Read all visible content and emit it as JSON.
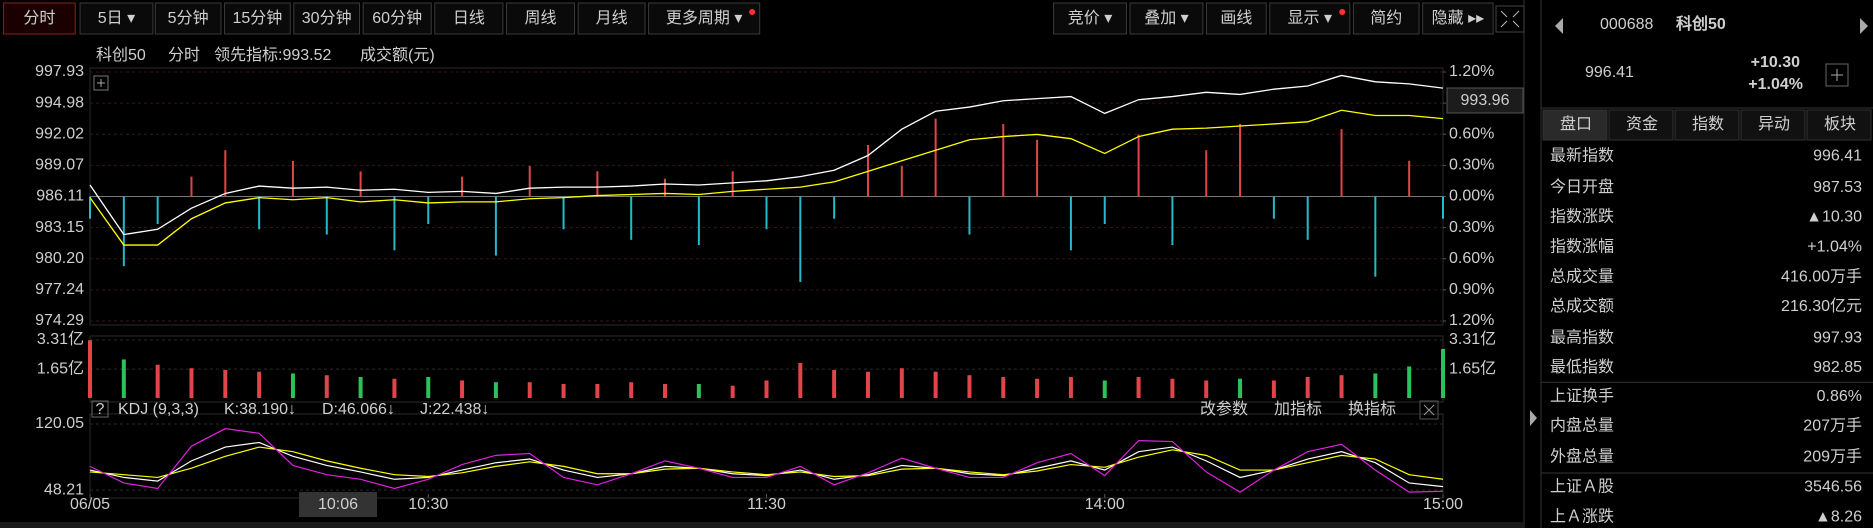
{
  "toolbar": {
    "left": [
      "分时",
      "5日 ▾",
      "5分钟",
      "15分钟",
      "30分钟",
      "60分钟",
      "日线",
      "周线",
      "月线",
      "更多周期 ▾"
    ],
    "right": [
      "竞价 ▾",
      "叠加 ▾",
      "画线",
      "显示 ▾",
      "简约",
      "隐藏 ▸▸"
    ]
  },
  "cursor": {
    "time": "10:06",
    "price": "993.96"
  },
  "chart_data": [
    {
      "type": "line",
      "period": "分时",
      "amount_label": "成交额(元)",
      "x": [
        0,
        6,
        12,
        18,
        24,
        30,
        36,
        42,
        48,
        54,
        60,
        66,
        72,
        78,
        84,
        90,
        96,
        102,
        108,
        114,
        120,
        126,
        132,
        138,
        144,
        150,
        156,
        162,
        168,
        174,
        180,
        186,
        192,
        198,
        204,
        210,
        216,
        222,
        228,
        234,
        240
      ],
      "xlim": [
        0,
        240
      ],
      "xticks": [
        {
          "value": 0,
          "label": "06/05"
        },
        {
          "value": 60,
          "label": "10:30"
        },
        {
          "value": 120,
          "label": "11:30"
        },
        {
          "value": 180,
          "label": "14:00"
        },
        {
          "value": 240,
          "label": "15:00"
        }
      ],
      "ylim": [
        974.29,
        997.93
      ],
      "yticks": [
        997.93,
        994.98,
        992.02,
        989.07,
        986.11,
        983.15,
        {
          "value": 980.2,
          "label": "980.20"
        },
        977.24,
        974.29
      ],
      "y2lim": [
        -1.2,
        1.2
      ],
      "y2ticks": [
        {
          "value": 1.2,
          "label": "1.20%"
        },
        {
          "value": 0.9,
          "label": "0.90%"
        },
        {
          "value": 0.6,
          "label": "0.60%"
        },
        {
          "value": 0.3,
          "label": "0.30%"
        },
        {
          "value": 0,
          "label": "0.00%"
        },
        {
          "value": -0.3,
          "label": "0.30%"
        },
        {
          "value": -0.6,
          "label": "0.60%"
        },
        {
          "value": -0.9,
          "label": "0.90%"
        },
        {
          "value": -1.2,
          "label": "1.20%"
        }
      ],
      "up_color": "#ff4d4d",
      "down_color": "#2bd15a",
      "grid": true,
      "series": [
        {
          "name": "科创50",
          "color": "#ffffff",
          "values": [
            987.2,
            982.5,
            983.0,
            985.0,
            986.4,
            987.1,
            986.9,
            987.0,
            986.7,
            986.8,
            986.5,
            986.6,
            986.4,
            986.9,
            987.0,
            987.0,
            987.1,
            987.3,
            987.2,
            987.4,
            987.6,
            988.0,
            988.6,
            990.0,
            992.5,
            994.2,
            994.6,
            995.2,
            995.4,
            995.6,
            994.0,
            995.3,
            995.6,
            996.0,
            995.8,
            996.3,
            996.6,
            997.6,
            997.0,
            996.8,
            996.4
          ]
        },
        {
          "name": "领先指标:993.52",
          "color": "#ffff00",
          "values": [
            986.0,
            981.5,
            981.5,
            984.0,
            985.5,
            986.0,
            985.8,
            986.0,
            985.6,
            985.8,
            985.5,
            985.6,
            985.6,
            985.9,
            986.0,
            986.2,
            986.3,
            986.4,
            986.3,
            986.6,
            986.8,
            987.0,
            987.5,
            988.5,
            989.5,
            990.5,
            991.5,
            991.8,
            992.0,
            991.6,
            990.2,
            991.8,
            992.5,
            992.6,
            992.8,
            993.0,
            993.2,
            994.3,
            993.8,
            993.8,
            993.5
          ]
        },
        {
          "type": "bar",
          "color": "#e0454a",
          "down_color": "#26b9c9",
          "values": [
            984.0,
            979.5,
            983.5,
            988.0,
            990.5,
            983.0,
            989.5,
            982.5,
            988.5,
            981.0,
            983.5,
            988.0,
            980.5,
            989.0,
            983.0,
            988.5,
            982.0,
            987.8,
            981.5,
            988.5,
            983.0,
            978.0,
            984.0,
            991.0,
            989.0,
            993.5,
            982.5,
            993.0,
            991.5,
            981.0,
            983.5,
            992.0,
            981.5,
            990.5,
            993.0,
            984.0,
            982.0,
            992.5,
            978.5,
            989.5,
            984.0
          ]
        }
      ]
    },
    {
      "type": "bar",
      "x": [
        0,
        6,
        12,
        18,
        24,
        30,
        36,
        42,
        48,
        54,
        60,
        66,
        72,
        78,
        84,
        90,
        96,
        102,
        108,
        114,
        120,
        126,
        132,
        138,
        144,
        150,
        156,
        162,
        168,
        174,
        180,
        186,
        192,
        198,
        204,
        210,
        216,
        222,
        228,
        234,
        240
      ],
      "ylim": [
        0,
        3.31
      ],
      "yticks": [
        {
          "value": 3.31,
          "label": "3.31亿"
        },
        {
          "value": 1.65,
          "label": "1.65亿"
        }
      ],
      "up_color": "#e0454a",
      "down_color": "#2bc25a",
      "values": [
        3.3,
        2.2,
        1.9,
        1.7,
        1.6,
        1.5,
        1.4,
        1.3,
        1.2,
        1.1,
        1.2,
        1.0,
        0.9,
        0.9,
        0.8,
        0.8,
        0.9,
        0.8,
        0.8,
        0.7,
        1.0,
        2.0,
        1.6,
        1.5,
        1.7,
        1.5,
        1.3,
        1.2,
        1.1,
        1.2,
        1.0,
        1.2,
        1.1,
        1.0,
        1.1,
        1.0,
        1.2,
        1.3,
        1.4,
        1.8,
        2.8
      ]
    },
    {
      "type": "line",
      "indicator": "KDJ (9,3,3)",
      "readouts": [
        "K:38.190↓",
        "D:46.066↓",
        "J:22.438↓"
      ],
      "buttons": [
        "改参数",
        "加指标",
        "换指标"
      ],
      "x": [
        0,
        6,
        12,
        18,
        24,
        30,
        36,
        42,
        48,
        54,
        60,
        66,
        72,
        78,
        84,
        90,
        96,
        102,
        108,
        114,
        120,
        126,
        132,
        138,
        144,
        150,
        156,
        162,
        168,
        174,
        180,
        186,
        192,
        198,
        204,
        210,
        216,
        222,
        228,
        234,
        240
      ],
      "ylim": [
        44,
        126.6
      ],
      "yticks": [
        120.05,
        48.21
      ],
      "series": [
        {
          "color": "#ffffff",
          "values": [
            70,
            62,
            58,
            80,
            95,
            100,
            85,
            75,
            68,
            60,
            62,
            70,
            78,
            82,
            70,
            62,
            66,
            74,
            72,
            66,
            64,
            70,
            60,
            65,
            75,
            72,
            66,
            64,
            72,
            80,
            70,
            90,
            95,
            80,
            62,
            70,
            82,
            90,
            78,
            56,
            52
          ]
        },
        {
          "color": "#ffff00",
          "values": [
            68,
            65,
            62,
            72,
            85,
            95,
            90,
            80,
            72,
            65,
            63,
            67,
            74,
            79,
            74,
            66,
            66,
            71,
            72,
            68,
            65,
            68,
            63,
            64,
            71,
            72,
            68,
            65,
            69,
            76,
            73,
            84,
            92,
            86,
            70,
            70,
            78,
            86,
            82,
            65,
            60
          ]
        },
        {
          "color": "#e020e0",
          "values": [
            74,
            56,
            50,
            96,
            115,
            110,
            75,
            65,
            60,
            50,
            60,
            76,
            86,
            88,
            62,
            54,
            66,
            80,
            72,
            62,
            62,
            74,
            54,
            67,
            83,
            72,
            62,
            62,
            78,
            88,
            64,
            102,
            101,
            68,
            46,
            70,
            90,
            98,
            70,
            46,
            47
          ]
        }
      ]
    }
  ],
  "quote": {
    "code": "000688",
    "name": "科创50",
    "price": "996.41",
    "change": "+10.30",
    "change_pct": "+1.04%",
    "tabs": [
      "盘口",
      "资金",
      "指数",
      "异动",
      "板块"
    ],
    "rows": [
      {
        "label": "最新指数",
        "value": "996.41",
        "color": "#ff4d4d"
      },
      {
        "label": "今日开盘",
        "value": "987.53",
        "color": "#ff4d4d"
      },
      {
        "label": "指数涨跌",
        "value": "▲10.30",
        "color": "#ff4d4d"
      },
      {
        "label": "指数涨幅",
        "value": "+1.04%",
        "color": "#ff4d4d"
      },
      {
        "label": "总成交量",
        "value": "416.00万手",
        "color": "#ffffff"
      },
      {
        "label": "总成交额",
        "value": "216.30",
        "unit": "亿元",
        "color": "#3ad6f0"
      },
      {
        "label": "最高指数",
        "value": "997.93",
        "color": "#ff4d4d"
      },
      {
        "label": "最低指数",
        "value": "982.85",
        "color": "#2bd15a"
      },
      {
        "label": "上证换手",
        "value": "0.86%",
        "color": "#ffffff"
      },
      {
        "label": "内盘总量",
        "value": "207万手",
        "color": "#2bd15a"
      },
      {
        "label": "外盘总量",
        "value": "209万手",
        "color": "#ff4d4d"
      },
      {
        "label": "上证Ａ股",
        "value": "3546.56",
        "color": "#ffffff"
      },
      {
        "label": "上Ａ涨跌",
        "value": "▲8.26",
        "color": "#ff4d4d"
      }
    ]
  }
}
